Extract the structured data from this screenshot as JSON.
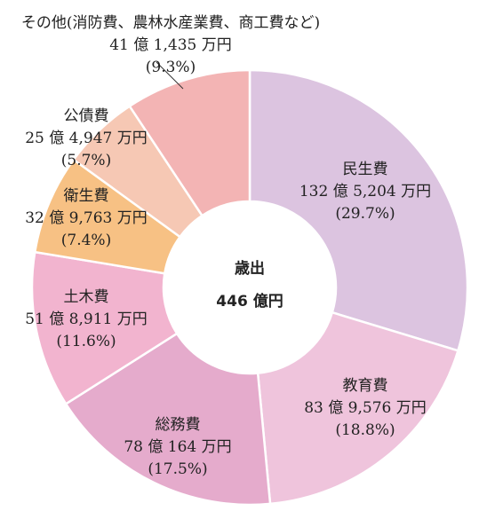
{
  "chart_data": {
    "type": "pie",
    "style": "donut",
    "center_title": "歳出",
    "center_total": "446 億円",
    "slices": [
      {
        "label": "民生費",
        "amount": "132 億 5,204 万円",
        "percent_label": "(29.7%)",
        "value": 29.7,
        "color": "#dcc4e0"
      },
      {
        "label": "教育費",
        "amount": "83 億 9,576 万円",
        "percent_label": "(18.8%)",
        "value": 18.8,
        "color": "#efc4dc"
      },
      {
        "label": "総務費",
        "amount": "78 億 164 万円",
        "percent_label": "(17.5%)",
        "value": 17.5,
        "color": "#e5abcc"
      },
      {
        "label": "土木費",
        "amount": "51 億 8,911 万円",
        "percent_label": "(11.6%)",
        "value": 11.6,
        "color": "#f2b4cf"
      },
      {
        "label": "衛生費",
        "amount": "32 億 9,763 万円",
        "percent_label": "(7.4%)",
        "value": 7.4,
        "color": "#f7c184"
      },
      {
        "label": "公債費",
        "amount": "25 億 4,947 万円",
        "percent_label": "(5.7%)",
        "value": 5.7,
        "color": "#f6c8b4"
      },
      {
        "label": "その他(消防費、農林水産業費、商工費など)",
        "amount": "41 億 1,435 万円",
        "percent_label": "(9.3%)",
        "value": 9.3,
        "color": "#f3b4b4"
      }
    ]
  }
}
